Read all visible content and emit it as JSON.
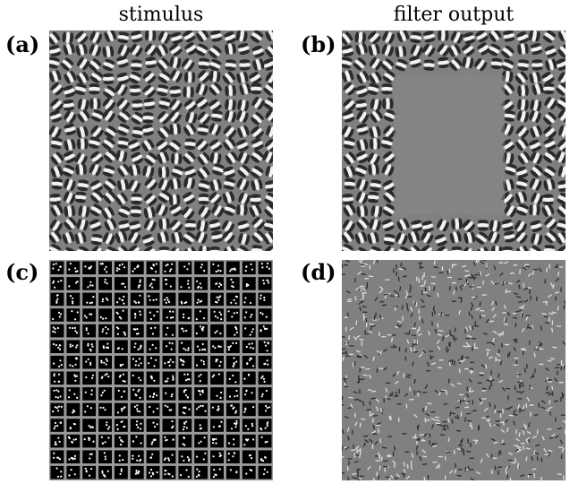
{
  "figure": {
    "column_titles": [
      "stimulus",
      "filter output"
    ],
    "panels": [
      {
        "label": "(a)",
        "content": "gabor-stimulus"
      },
      {
        "label": "(b)",
        "content": "gabor-filter-output"
      },
      {
        "label": "(c)",
        "content": "dot-grid-stimulus"
      },
      {
        "label": "(d)",
        "content": "dot-grid-filter-output"
      }
    ]
  }
}
